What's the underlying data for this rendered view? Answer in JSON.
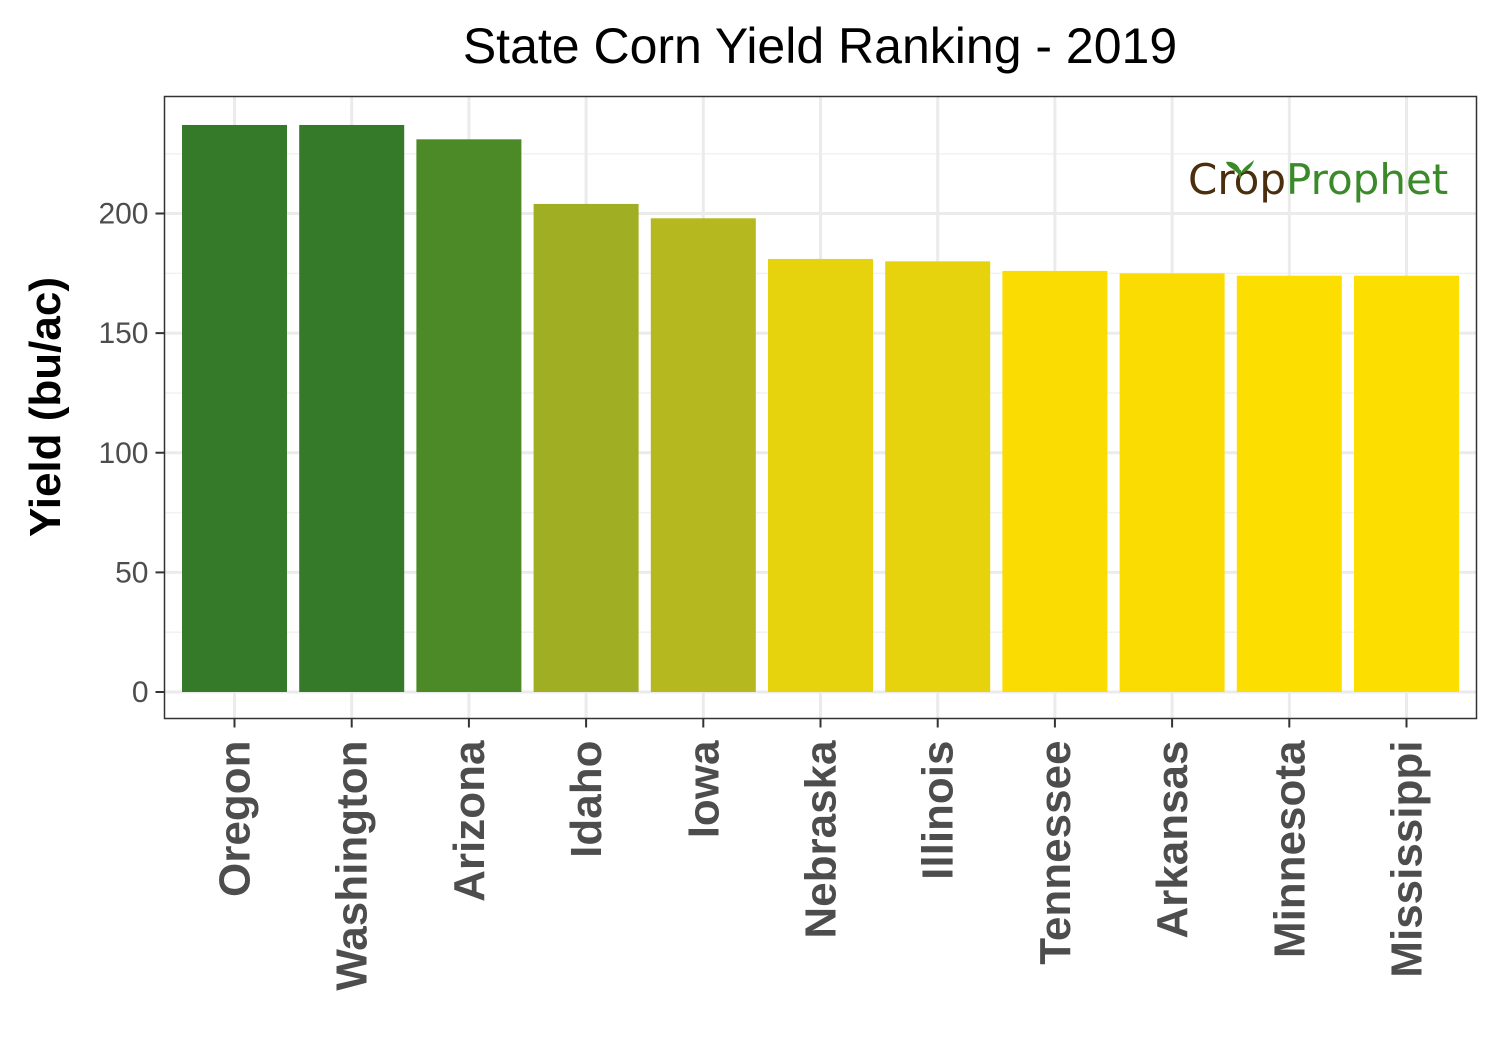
{
  "chart_data": {
    "type": "bar",
    "title": "State Corn Yield Ranking - 2019",
    "ylabel": "Yield (bu/ac)",
    "xlabel": "",
    "ylim": [
      0,
      250
    ],
    "yticks": [
      0,
      50,
      100,
      150,
      200
    ],
    "grid": true,
    "categories": [
      "Oregon",
      "Washington",
      "Arizona",
      "Idaho",
      "Iowa",
      "Nebraska",
      "Illinois",
      "Tennessee",
      "Arkansas",
      "Minnesota",
      "Mississippi"
    ],
    "values": [
      237,
      237,
      231,
      204,
      198,
      181,
      180,
      176,
      175,
      174,
      174
    ],
    "colors": [
      "#357a28",
      "#357a28",
      "#4c8a27",
      "#a0ae23",
      "#b6b81f",
      "#e6d20d",
      "#e6d20d",
      "#fadc02",
      "#fadc02",
      "#fcde01",
      "#fcde01"
    ]
  },
  "logo": {
    "part1": "Cr",
    "part2": "o",
    "part3": "p",
    "part4": "Prophet",
    "brown": "#4a2e0e",
    "green": "#3a8a2a"
  }
}
